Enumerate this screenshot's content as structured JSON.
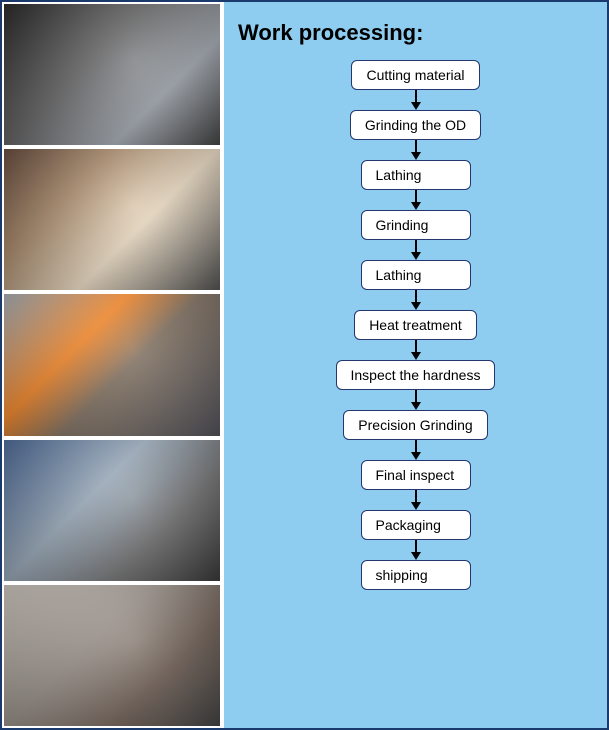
{
  "title": "Work processing:",
  "flow": {
    "type": "flowchart",
    "node_background": "#ffffff",
    "node_border_color": "#24356f",
    "node_border_radius": 6,
    "node_fontsize": 14,
    "arrow_color": "#000000",
    "panel_background": "#8ecdf0",
    "title_fontsize": 22,
    "title_color": "#000000",
    "steps": [
      "Cutting material",
      "Grinding the OD",
      "Lathing",
      "Grinding",
      "Lathing",
      "Heat treatment",
      "Inspect the hardness",
      "Precision Grinding",
      "Final inspect",
      "Packaging",
      "shipping"
    ]
  },
  "photos": [
    {
      "alt": "Worker operating CNC machine"
    },
    {
      "alt": "Worker at grinding machine"
    },
    {
      "alt": "Worker grinding with sparks"
    },
    {
      "alt": "Worker at lathe with extraction hose"
    },
    {
      "alt": "Worker at manual lathe"
    }
  ],
  "page_border_color": "#1a3a6e"
}
